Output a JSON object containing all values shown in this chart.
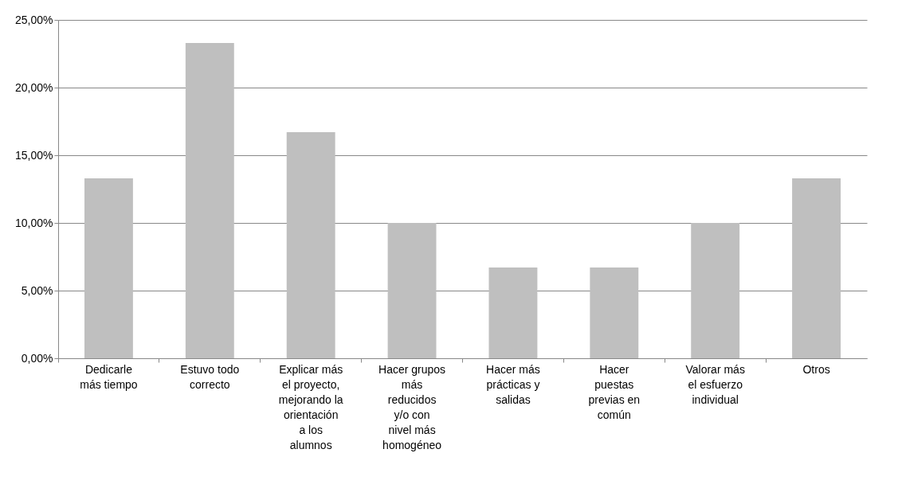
{
  "chart_data": {
    "type": "bar",
    "categories": [
      "Dedicarle más tiempo",
      "Estuvo todo correcto",
      "Explicar más el proyecto, mejorando la orientación a los alumnos",
      "Hacer grupos más reducidos y/o con nivel más homogéneo",
      "Hacer más prácticas y salidas",
      "Hacer puestas previas en común",
      "Valorar más el esfuerzo individual",
      "Otros"
    ],
    "values": [
      13.3,
      23.3,
      16.7,
      10,
      6.7,
      6.7,
      10,
      13.3
    ],
    "color": "#bfbfbf",
    "ylim": [
      0,
      25
    ],
    "yticks": [
      {
        "value": 0,
        "label": "0,00%"
      },
      {
        "value": 5,
        "label": "5,00%"
      },
      {
        "value": 10,
        "label": "10,00%"
      },
      {
        "value": 15,
        "label": "15,00%"
      },
      {
        "value": 20,
        "label": "20,00%"
      },
      {
        "value": 25,
        "label": "25,00%"
      }
    ],
    "grid": "y"
  }
}
